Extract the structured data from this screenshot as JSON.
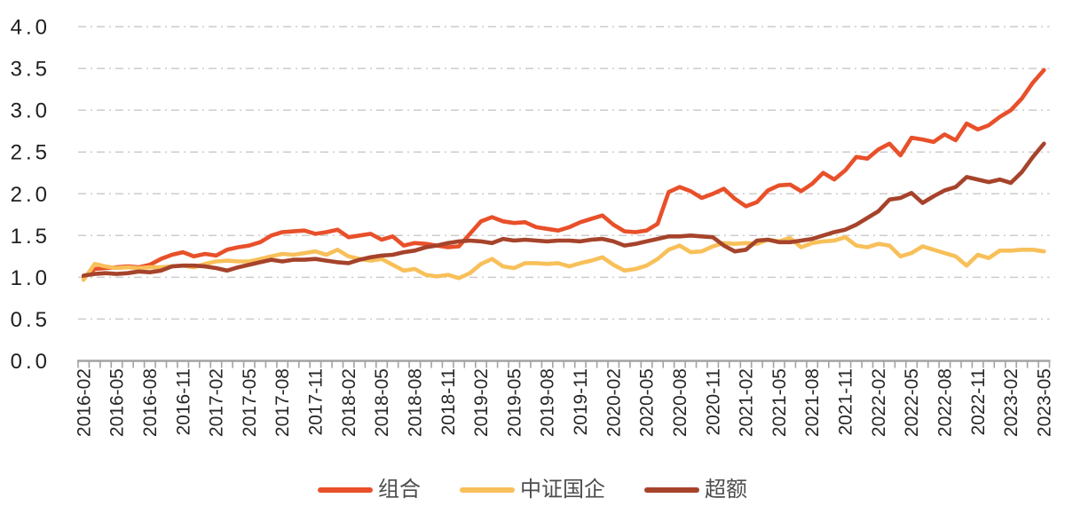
{
  "chart_data": {
    "type": "line",
    "title": "",
    "xlabel": "",
    "ylabel": "",
    "ylim": [
      0.0,
      4.0
    ],
    "ytick_step": 0.5,
    "y_tick_labels": [
      "0.0",
      "0.5",
      "1.0",
      "1.5",
      "2.0",
      "2.5",
      "3.0",
      "3.5",
      "4.0"
    ],
    "x_label_interval": 3,
    "grid": "horizontal dash-dot",
    "legend_position": "bottom",
    "colors": {
      "grid": "#cccccc",
      "axis": "#a3a3a3",
      "tick_label": "#262626",
      "legend_text": "#4d4d4d"
    },
    "x": [
      "2016-02",
      "2016-03",
      "2016-04",
      "2016-05",
      "2016-06",
      "2016-07",
      "2016-08",
      "2016-09",
      "2016-10",
      "2016-11",
      "2016-12",
      "2017-01",
      "2017-02",
      "2017-03",
      "2017-04",
      "2017-05",
      "2017-06",
      "2017-07",
      "2017-08",
      "2017-09",
      "2017-10",
      "2017-11",
      "2017-12",
      "2018-01",
      "2018-02",
      "2018-03",
      "2018-04",
      "2018-05",
      "2018-06",
      "2018-07",
      "2018-08",
      "2018-09",
      "2018-10",
      "2018-11",
      "2018-12",
      "2019-01",
      "2019-02",
      "2019-03",
      "2019-04",
      "2019-05",
      "2019-06",
      "2019-07",
      "2019-08",
      "2019-09",
      "2019-10",
      "2019-11",
      "2019-12",
      "2020-01",
      "2020-02",
      "2020-03",
      "2020-04",
      "2020-05",
      "2020-06",
      "2020-07",
      "2020-08",
      "2020-09",
      "2020-10",
      "2020-11",
      "2020-12",
      "2021-01",
      "2021-02",
      "2021-03",
      "2021-04",
      "2021-05",
      "2021-06",
      "2021-07",
      "2021-08",
      "2021-09",
      "2021-10",
      "2021-11",
      "2021-12",
      "2022-01",
      "2022-02",
      "2022-03",
      "2022-04",
      "2022-05",
      "2022-06",
      "2022-07",
      "2022-08",
      "2022-09",
      "2022-10",
      "2022-11",
      "2022-12",
      "2023-01",
      "2023-02",
      "2023-03",
      "2023-04",
      "2023-05"
    ],
    "series": [
      {
        "id": "portfolio",
        "name": "组合",
        "color": "#E8502A",
        "values": [
          1.0,
          1.1,
          1.11,
          1.12,
          1.13,
          1.12,
          1.15,
          1.22,
          1.27,
          1.3,
          1.25,
          1.28,
          1.26,
          1.33,
          1.36,
          1.38,
          1.42,
          1.5,
          1.54,
          1.55,
          1.56,
          1.52,
          1.54,
          1.57,
          1.48,
          1.5,
          1.52,
          1.45,
          1.49,
          1.38,
          1.41,
          1.4,
          1.38,
          1.36,
          1.37,
          1.52,
          1.67,
          1.72,
          1.67,
          1.65,
          1.66,
          1.6,
          1.58,
          1.56,
          1.6,
          1.66,
          1.7,
          1.74,
          1.63,
          1.55,
          1.54,
          1.56,
          1.64,
          2.02,
          2.08,
          2.03,
          1.95,
          2.0,
          2.06,
          1.94,
          1.85,
          1.9,
          2.04,
          2.1,
          2.11,
          2.03,
          2.12,
          2.25,
          2.17,
          2.28,
          2.44,
          2.42,
          2.53,
          2.6,
          2.46,
          2.67,
          2.65,
          2.62,
          2.71,
          2.64,
          2.84,
          2.77,
          2.82,
          2.92,
          3.0,
          3.14,
          3.33,
          3.48
        ]
      },
      {
        "id": "csi-soe-index",
        "name": "中证国企",
        "color": "#F8C05A",
        "values": [
          0.97,
          1.16,
          1.13,
          1.11,
          1.12,
          1.11,
          1.12,
          1.12,
          1.13,
          1.14,
          1.12,
          1.16,
          1.19,
          1.2,
          1.19,
          1.19,
          1.22,
          1.25,
          1.28,
          1.27,
          1.29,
          1.31,
          1.27,
          1.33,
          1.25,
          1.22,
          1.2,
          1.22,
          1.15,
          1.08,
          1.1,
          1.03,
          1.01,
          1.03,
          0.99,
          1.05,
          1.16,
          1.22,
          1.13,
          1.11,
          1.17,
          1.17,
          1.16,
          1.17,
          1.13,
          1.17,
          1.2,
          1.24,
          1.15,
          1.08,
          1.1,
          1.14,
          1.22,
          1.33,
          1.38,
          1.3,
          1.31,
          1.37,
          1.41,
          1.4,
          1.41,
          1.4,
          1.45,
          1.43,
          1.47,
          1.36,
          1.41,
          1.43,
          1.44,
          1.48,
          1.38,
          1.36,
          1.4,
          1.38,
          1.25,
          1.29,
          1.37,
          1.33,
          1.29,
          1.25,
          1.14,
          1.27,
          1.23,
          1.32,
          1.32,
          1.33,
          1.33,
          1.31
        ]
      },
      {
        "id": "excess",
        "name": "超额",
        "color": "#A6432B",
        "values": [
          1.02,
          1.04,
          1.05,
          1.04,
          1.05,
          1.07,
          1.06,
          1.08,
          1.13,
          1.14,
          1.14,
          1.13,
          1.11,
          1.08,
          1.12,
          1.15,
          1.18,
          1.21,
          1.19,
          1.21,
          1.21,
          1.22,
          1.2,
          1.18,
          1.17,
          1.21,
          1.24,
          1.26,
          1.27,
          1.3,
          1.32,
          1.36,
          1.38,
          1.41,
          1.43,
          1.44,
          1.43,
          1.41,
          1.46,
          1.44,
          1.45,
          1.44,
          1.43,
          1.44,
          1.44,
          1.43,
          1.45,
          1.46,
          1.43,
          1.38,
          1.4,
          1.43,
          1.46,
          1.49,
          1.49,
          1.5,
          1.49,
          1.48,
          1.38,
          1.31,
          1.33,
          1.44,
          1.45,
          1.42,
          1.42,
          1.44,
          1.46,
          1.5,
          1.54,
          1.57,
          1.63,
          1.71,
          1.79,
          1.93,
          1.95,
          2.01,
          1.89,
          1.97,
          2.04,
          2.08,
          2.2,
          2.17,
          2.14,
          2.17,
          2.13,
          2.26,
          2.44,
          2.6
        ]
      }
    ]
  }
}
